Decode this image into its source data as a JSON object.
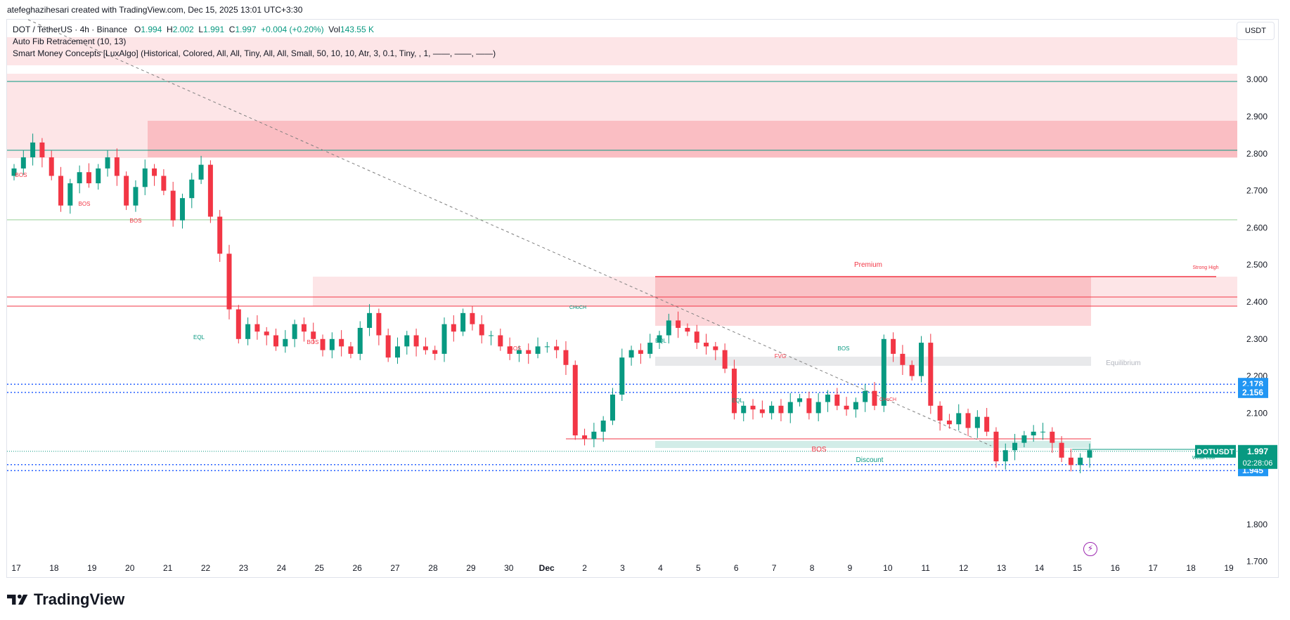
{
  "header": {
    "attribution": "atefeghazihesari created with TradingView.com, Dec 15, 2025 13:01 UTC+3:30"
  },
  "legend": {
    "symbol": "DOT / TetherUS · 4h · Binance",
    "o_label": "O",
    "o_value": "1.994",
    "h_label": "H",
    "h_value": "2.002",
    "l_label": "L",
    "l_value": "1.991",
    "c_label": "C",
    "c_value": "1.997",
    "change": "+0.004 (+0.20%)",
    "vol_label": "Vol",
    "vol_value": "143.55 K",
    "indicator1": "Auto Fib Retracement (10, 13)",
    "indicator2": "Smart Money Concepts [LuxAlgo] (Historical, Colored, All, All, Tiny, All, All, Small, 50, 10, 10, Atr, 3, 0.1, Tiny, , 1, ——, ——, ——)"
  },
  "price_axis": {
    "currency": "USDT",
    "ticks": [
      "3.000",
      "2.900",
      "2.800",
      "2.700",
      "2.600",
      "2.500",
      "2.400",
      "2.300",
      "2.200",
      "2.100",
      "1.800",
      "1.700"
    ],
    "badges": [
      {
        "text": "2.178",
        "color": "#2196f3"
      },
      {
        "text": "2.156",
        "color": "#2196f3"
      },
      {
        "text": "1.961",
        "color": "#2196f3"
      },
      {
        "text": "1.945",
        "color": "#2196f3"
      }
    ],
    "last_price": {
      "symbol": "DOTUSDT",
      "price": "1.997",
      "countdown": "02:28:06",
      "color": "#089981"
    }
  },
  "time_axis": {
    "labels": [
      "17",
      "18",
      "19",
      "20",
      "21",
      "22",
      "23",
      "24",
      "25",
      "26",
      "27",
      "28",
      "29",
      "30",
      "Dec",
      "2",
      "3",
      "4",
      "5",
      "6",
      "7",
      "8",
      "9",
      "10",
      "11",
      "12",
      "13",
      "14",
      "15",
      "16",
      "17",
      "18",
      "19"
    ]
  },
  "annotations": {
    "bos": "BOS",
    "eql": "EQL",
    "choch": "CHoCH",
    "fvg": "FVG",
    "premium": "Premium",
    "equilibrium": "Equilibrium",
    "discount": "Discount",
    "strong_high": "Strong High",
    "weak_low": "Weak Low"
  },
  "colors": {
    "up": "#089981",
    "down": "#f23645",
    "zone_red": "#f23645",
    "fib_blue": "#2962ff"
  },
  "chart_data": {
    "type": "candlestick",
    "title": "DOT / TetherUS · 4h · Binance",
    "xlabel": "",
    "ylabel": "",
    "ylim": [
      1.65,
      3.05
    ],
    "grid": false,
    "levels": [
      2.178,
      2.156,
      1.961,
      1.945
    ],
    "last": 1.997,
    "closes": [
      2.76,
      2.79,
      2.83,
      2.79,
      2.74,
      2.66,
      2.72,
      2.75,
      2.72,
      2.76,
      2.79,
      2.74,
      2.66,
      2.71,
      2.76,
      2.74,
      2.7,
      2.62,
      2.68,
      2.73,
      2.77,
      2.63,
      2.53,
      2.38,
      2.3,
      2.34,
      2.32,
      2.31,
      2.28,
      2.3,
      2.34,
      2.32,
      2.3,
      2.27,
      2.3,
      2.28,
      2.26,
      2.33,
      2.37,
      2.31,
      2.25,
      2.28,
      2.31,
      2.28,
      2.27,
      2.26,
      2.34,
      2.32,
      2.37,
      2.34,
      2.31,
      2.31,
      2.28,
      2.26,
      2.27,
      2.26,
      2.28,
      2.28,
      2.27,
      2.23,
      2.04,
      2.03,
      2.05,
      2.08,
      2.15,
      2.25,
      2.27,
      2.26,
      2.29,
      2.31,
      2.35,
      2.33,
      2.32,
      2.29,
      2.28,
      2.27,
      2.22,
      2.1,
      2.12,
      2.11,
      2.1,
      2.12,
      2.1,
      2.13,
      2.14,
      2.1,
      2.13,
      2.15,
      2.12,
      2.11,
      2.13,
      2.16,
      2.12,
      2.3,
      2.26,
      2.23,
      2.2,
      2.29,
      2.12,
      2.08,
      2.07,
      2.1,
      2.06,
      2.09,
      2.05,
      1.97,
      2.0,
      2.02,
      2.04,
      2.05,
      2.05,
      2.02,
      1.98,
      1.96,
      1.98,
      2.0
    ]
  }
}
